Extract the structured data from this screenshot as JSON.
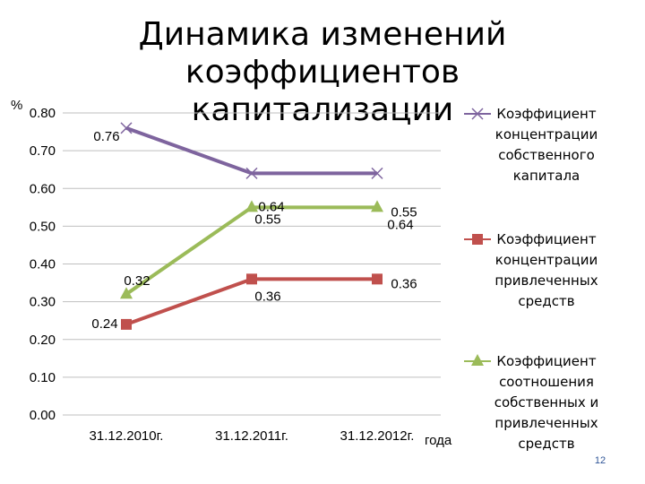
{
  "title_lines": [
    "Динамика изменений",
    "коэффициентов капитализации"
  ],
  "page_number": "12",
  "chart_data": {
    "type": "line",
    "title": "Динамика изменений коэффициентов капитализации",
    "ylabel": "%",
    "xlabel": "года",
    "categories": [
      "31.12.2010г.",
      "31.12.2011г.",
      "31.12.2012г."
    ],
    "ylim": [
      0,
      0.8
    ],
    "yticks": [
      "0.00",
      "0.10",
      "0.20",
      "0.30",
      "0.40",
      "0.50",
      "0.60",
      "0.70",
      "0.80"
    ],
    "grid": true,
    "legend_position": "right",
    "series": [
      {
        "name": "Коэффициент концентрации собственного капитала",
        "legend_lines": [
          "Коэффициент",
          "концентрации",
          "собственного",
          "капитала"
        ],
        "values": [
          0.76,
          0.64,
          0.64
        ],
        "labels": [
          "0.76",
          "0.64",
          "0.64"
        ],
        "color": "#7E649E",
        "marker": "x"
      },
      {
        "name": "Коэффициент концентрации привлеченных средств",
        "legend_lines": [
          "Коэффициент",
          "концентрации",
          "привлеченных",
          "средств"
        ],
        "values": [
          0.24,
          0.36,
          0.36
        ],
        "labels": [
          "0.24",
          "0.36",
          "0.36"
        ],
        "color": "#C0504D",
        "marker": "square"
      },
      {
        "name": "Коэффициент соотношения собственных и привлеченных средств",
        "legend_lines": [
          "Коэффициент",
          "соотношения",
          "собственных и",
          "привлеченных",
          "средств"
        ],
        "values": [
          0.32,
          0.55,
          0.55
        ],
        "labels": [
          "0.32",
          "0.55",
          "0.55"
        ],
        "color": "#9BBB59",
        "marker": "triangle"
      }
    ]
  }
}
